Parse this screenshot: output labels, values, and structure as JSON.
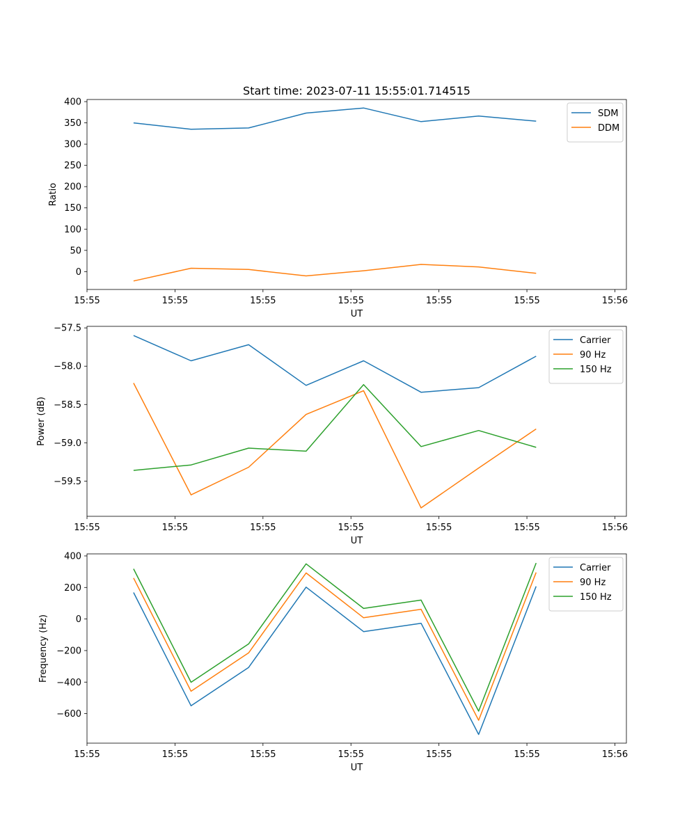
{
  "title": "Start time: 2023-07-11 15:55:01.714515",
  "colors": {
    "blue": "#1f77b4",
    "orange": "#ff7f0e",
    "green": "#2ca02c"
  },
  "chart_data": [
    {
      "type": "line",
      "title": "Start time: 2023-07-11 15:55:01.714515",
      "xlabel": "UT",
      "ylabel": "Ratio",
      "x": [
        1,
        2,
        3,
        4,
        5,
        6,
        7,
        8
      ],
      "xlim": [
        0.19,
        9.57
      ],
      "x_ticks": [
        0.19,
        1.72,
        3.25,
        4.78,
        6.31,
        7.84,
        9.37
      ],
      "x_tick_labels": [
        "15:55",
        "15:55",
        "15:55",
        "15:55",
        "15:55",
        "15:55",
        "15:56"
      ],
      "ylim": [
        -42,
        405
      ],
      "y_ticks": [
        0,
        50,
        100,
        150,
        200,
        250,
        300,
        350,
        400
      ],
      "y_tick_labels": [
        "0",
        "50",
        "100",
        "150",
        "200",
        "250",
        "300",
        "350",
        "400"
      ],
      "legend_position": "top-right",
      "series": [
        {
          "name": "SDM",
          "color": "#1f77b4",
          "values": [
            350,
            335,
            338,
            373,
            385,
            353,
            366,
            354
          ]
        },
        {
          "name": "DDM",
          "color": "#ff7f0e",
          "values": [
            -22,
            8,
            5,
            -10,
            2,
            17,
            11,
            -4
          ]
        }
      ]
    },
    {
      "type": "line",
      "xlabel": "UT",
      "ylabel": "Power (dB)",
      "x": [
        1,
        2,
        3,
        4,
        5,
        6,
        7,
        8
      ],
      "xlim": [
        0.19,
        9.57
      ],
      "x_ticks": [
        0.19,
        1.72,
        3.25,
        4.78,
        6.31,
        7.84,
        9.37
      ],
      "x_tick_labels": [
        "15:55",
        "15:55",
        "15:55",
        "15:55",
        "15:55",
        "15:55",
        "15:56"
      ],
      "ylim": [
        -59.96,
        -57.48
      ],
      "y_ticks": [
        -59.5,
        -59.0,
        -58.5,
        -58.0,
        -57.5
      ],
      "y_tick_labels": [
        "−59.5",
        "−59.0",
        "−58.5",
        "−58.0",
        "−57.5"
      ],
      "legend_position": "top-right",
      "series": [
        {
          "name": "Carrier",
          "color": "#1f77b4",
          "values": [
            -57.6,
            -57.93,
            -57.72,
            -58.25,
            -57.93,
            -58.34,
            -58.28,
            -57.87
          ]
        },
        {
          "name": "90 Hz",
          "color": "#ff7f0e",
          "values": [
            -58.22,
            -59.68,
            -59.32,
            -58.63,
            -58.32,
            -59.85,
            -59.33,
            -58.82
          ]
        },
        {
          "name": "150 Hz",
          "color": "#2ca02c",
          "values": [
            -59.36,
            -59.29,
            -59.07,
            -59.11,
            -58.24,
            -59.05,
            -58.84,
            -59.06
          ]
        }
      ]
    },
    {
      "type": "line",
      "xlabel": "UT",
      "ylabel": "Frequency (Hz)",
      "x": [
        1,
        2,
        3,
        4,
        5,
        6,
        7,
        8
      ],
      "xlim": [
        0.19,
        9.57
      ],
      "x_ticks": [
        0.19,
        1.72,
        3.25,
        4.78,
        6.31,
        7.84,
        9.37
      ],
      "x_tick_labels": [
        "15:55",
        "15:55",
        "15:55",
        "15:55",
        "15:55",
        "15:55",
        "15:56"
      ],
      "ylim": [
        -787,
        413
      ],
      "y_ticks": [
        -600,
        -400,
        -200,
        0,
        200,
        400
      ],
      "y_tick_labels": [
        "−600",
        "−400",
        "−200",
        "0",
        "200",
        "400"
      ],
      "legend_position": "top-right",
      "series": [
        {
          "name": "Carrier",
          "color": "#1f77b4",
          "values": [
            168,
            -550,
            -307,
            202,
            -80,
            -27,
            -732,
            207
          ]
        },
        {
          "name": "90 Hz",
          "color": "#ff7f0e",
          "values": [
            260,
            -458,
            -215,
            292,
            8,
            62,
            -642,
            295
          ]
        },
        {
          "name": "150 Hz",
          "color": "#2ca02c",
          "values": [
            318,
            -401,
            -158,
            350,
            67,
            120,
            -584,
            355
          ]
        }
      ]
    }
  ]
}
